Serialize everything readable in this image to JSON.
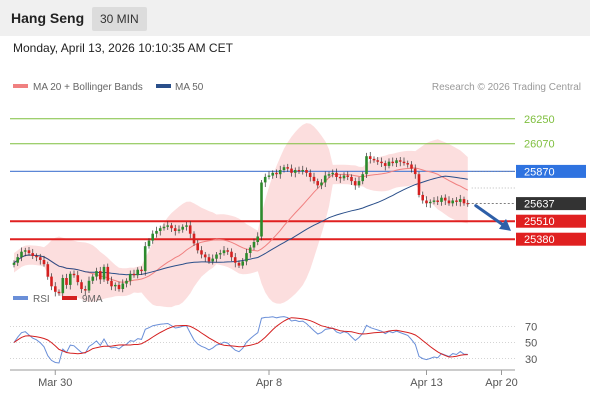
{
  "header": {
    "instrument": "Hang Seng",
    "timeframe": "30 MIN"
  },
  "datetime": "Monday, April 13, 2026 10:10:35 AM CET",
  "legend": [
    {
      "label": "MA 20 + Bollinger Bands",
      "color": "#f08080"
    },
    {
      "label": "MA 50",
      "color": "#2a4f8a"
    }
  ],
  "watermark": "Research © 2026 Trading Central",
  "colors": {
    "up": "#2c8a2c",
    "down": "#d42020",
    "resistance": "#7fbf3f",
    "pivot": "#5b86d6",
    "support": "#e02020",
    "current": "#333333",
    "arrow": "#2e5fa8"
  },
  "chart_data": [
    {
      "type": "candlestick",
      "y_range": [
        25100,
        26400
      ],
      "x_ticks": [
        "Mar 30",
        "Apr 8",
        "Apr 13",
        "Apr 20"
      ],
      "levels": [
        {
          "value": 26250,
          "label": "26250",
          "kind": "resistance"
        },
        {
          "value": 26070,
          "label": "26070",
          "kind": "resistance"
        },
        {
          "value": 25870,
          "label": "25870",
          "kind": "pivot"
        },
        {
          "value": 25637,
          "label": "25637",
          "kind": "current"
        },
        {
          "value": 25510,
          "label": "25510",
          "kind": "support"
        },
        {
          "value": 25380,
          "label": "25380",
          "kind": "support"
        }
      ],
      "closes": [
        25210,
        25250,
        25290,
        25300,
        25280,
        25260,
        25250,
        25230,
        25200,
        25110,
        25040,
        25000,
        24990,
        25100,
        25050,
        25130,
        25120,
        25070,
        25020,
        25010,
        25080,
        25110,
        25150,
        25090,
        25180,
        25080,
        25040,
        25050,
        25020,
        25060,
        25080,
        25130,
        25120,
        25160,
        25150,
        25330,
        25370,
        25420,
        25440,
        25460,
        25470,
        25480,
        25460,
        25440,
        25450,
        25470,
        25480,
        25420,
        25350,
        25300,
        25270,
        25250,
        25220,
        25240,
        25270,
        25280,
        25300,
        25290,
        25250,
        25210,
        25190,
        25220,
        25280,
        25320,
        25360,
        25400,
        25790,
        25830,
        25840,
        25860,
        25850,
        25880,
        25900,
        25890,
        25860,
        25880,
        25870,
        25880,
        25860,
        25830,
        25800,
        25770,
        25790,
        25840,
        25850,
        25860,
        25830,
        25820,
        25840,
        25830,
        25800,
        25770,
        25800,
        25850,
        25980,
        25960,
        25950,
        25940,
        25930,
        25910,
        25940,
        25930,
        25950,
        25940,
        25930,
        25920,
        25890,
        25850,
        25700,
        25660,
        25640,
        25650,
        25660,
        25650,
        25680,
        25660,
        25640,
        25660,
        25650,
        25670,
        25640,
        25637
      ],
      "rsi": {
        "y_range": [
          10,
          90
        ],
        "ticks": [
          70,
          50,
          30
        ],
        "series": [
          {
            "name": "RSI",
            "color": "#6a8fd8"
          },
          {
            "name": "9MA",
            "color": "#d42020"
          }
        ]
      }
    }
  ]
}
